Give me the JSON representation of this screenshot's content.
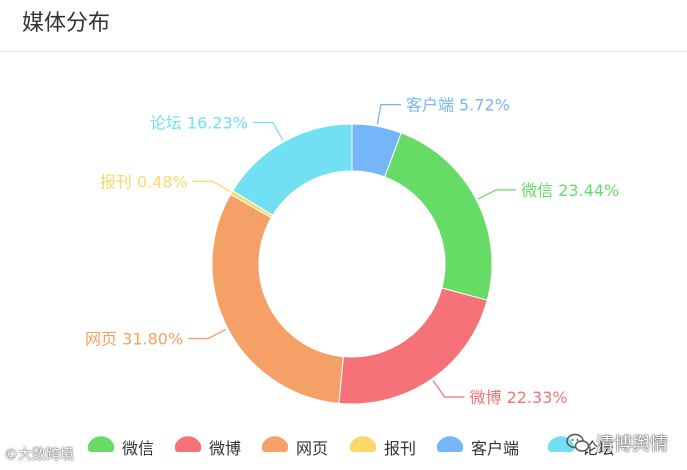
{
  "panel": {
    "title": "媒体分布"
  },
  "chart_data": {
    "type": "pie",
    "donut": true,
    "categories": [
      "客户端",
      "微信",
      "微博",
      "网页",
      "报刊",
      "论坛"
    ],
    "values": [
      5.72,
      23.44,
      22.33,
      31.8,
      0.48,
      16.23
    ],
    "labels": [
      "客户端 5.72%",
      "微信 23.44%",
      "微博 22.33%",
      "网页 31.80%",
      "报刊 0.48%",
      "论坛 16.23%"
    ],
    "colors": [
      "#75b5fa",
      "#66dc66",
      "#f57378",
      "#f5a066",
      "#fcd76a",
      "#71e0f2"
    ],
    "legend": {
      "placement": "bottom",
      "entries": [
        "微信",
        "微博",
        "网页",
        "报刊",
        "客户端",
        "论坛"
      ],
      "colors": [
        "#66dc66",
        "#f57378",
        "#f5a066",
        "#fcd76a",
        "#75b5fa",
        "#71e0f2"
      ]
    }
  },
  "watermarks": {
    "left": "©大数跨境",
    "right": "清博舆情"
  }
}
